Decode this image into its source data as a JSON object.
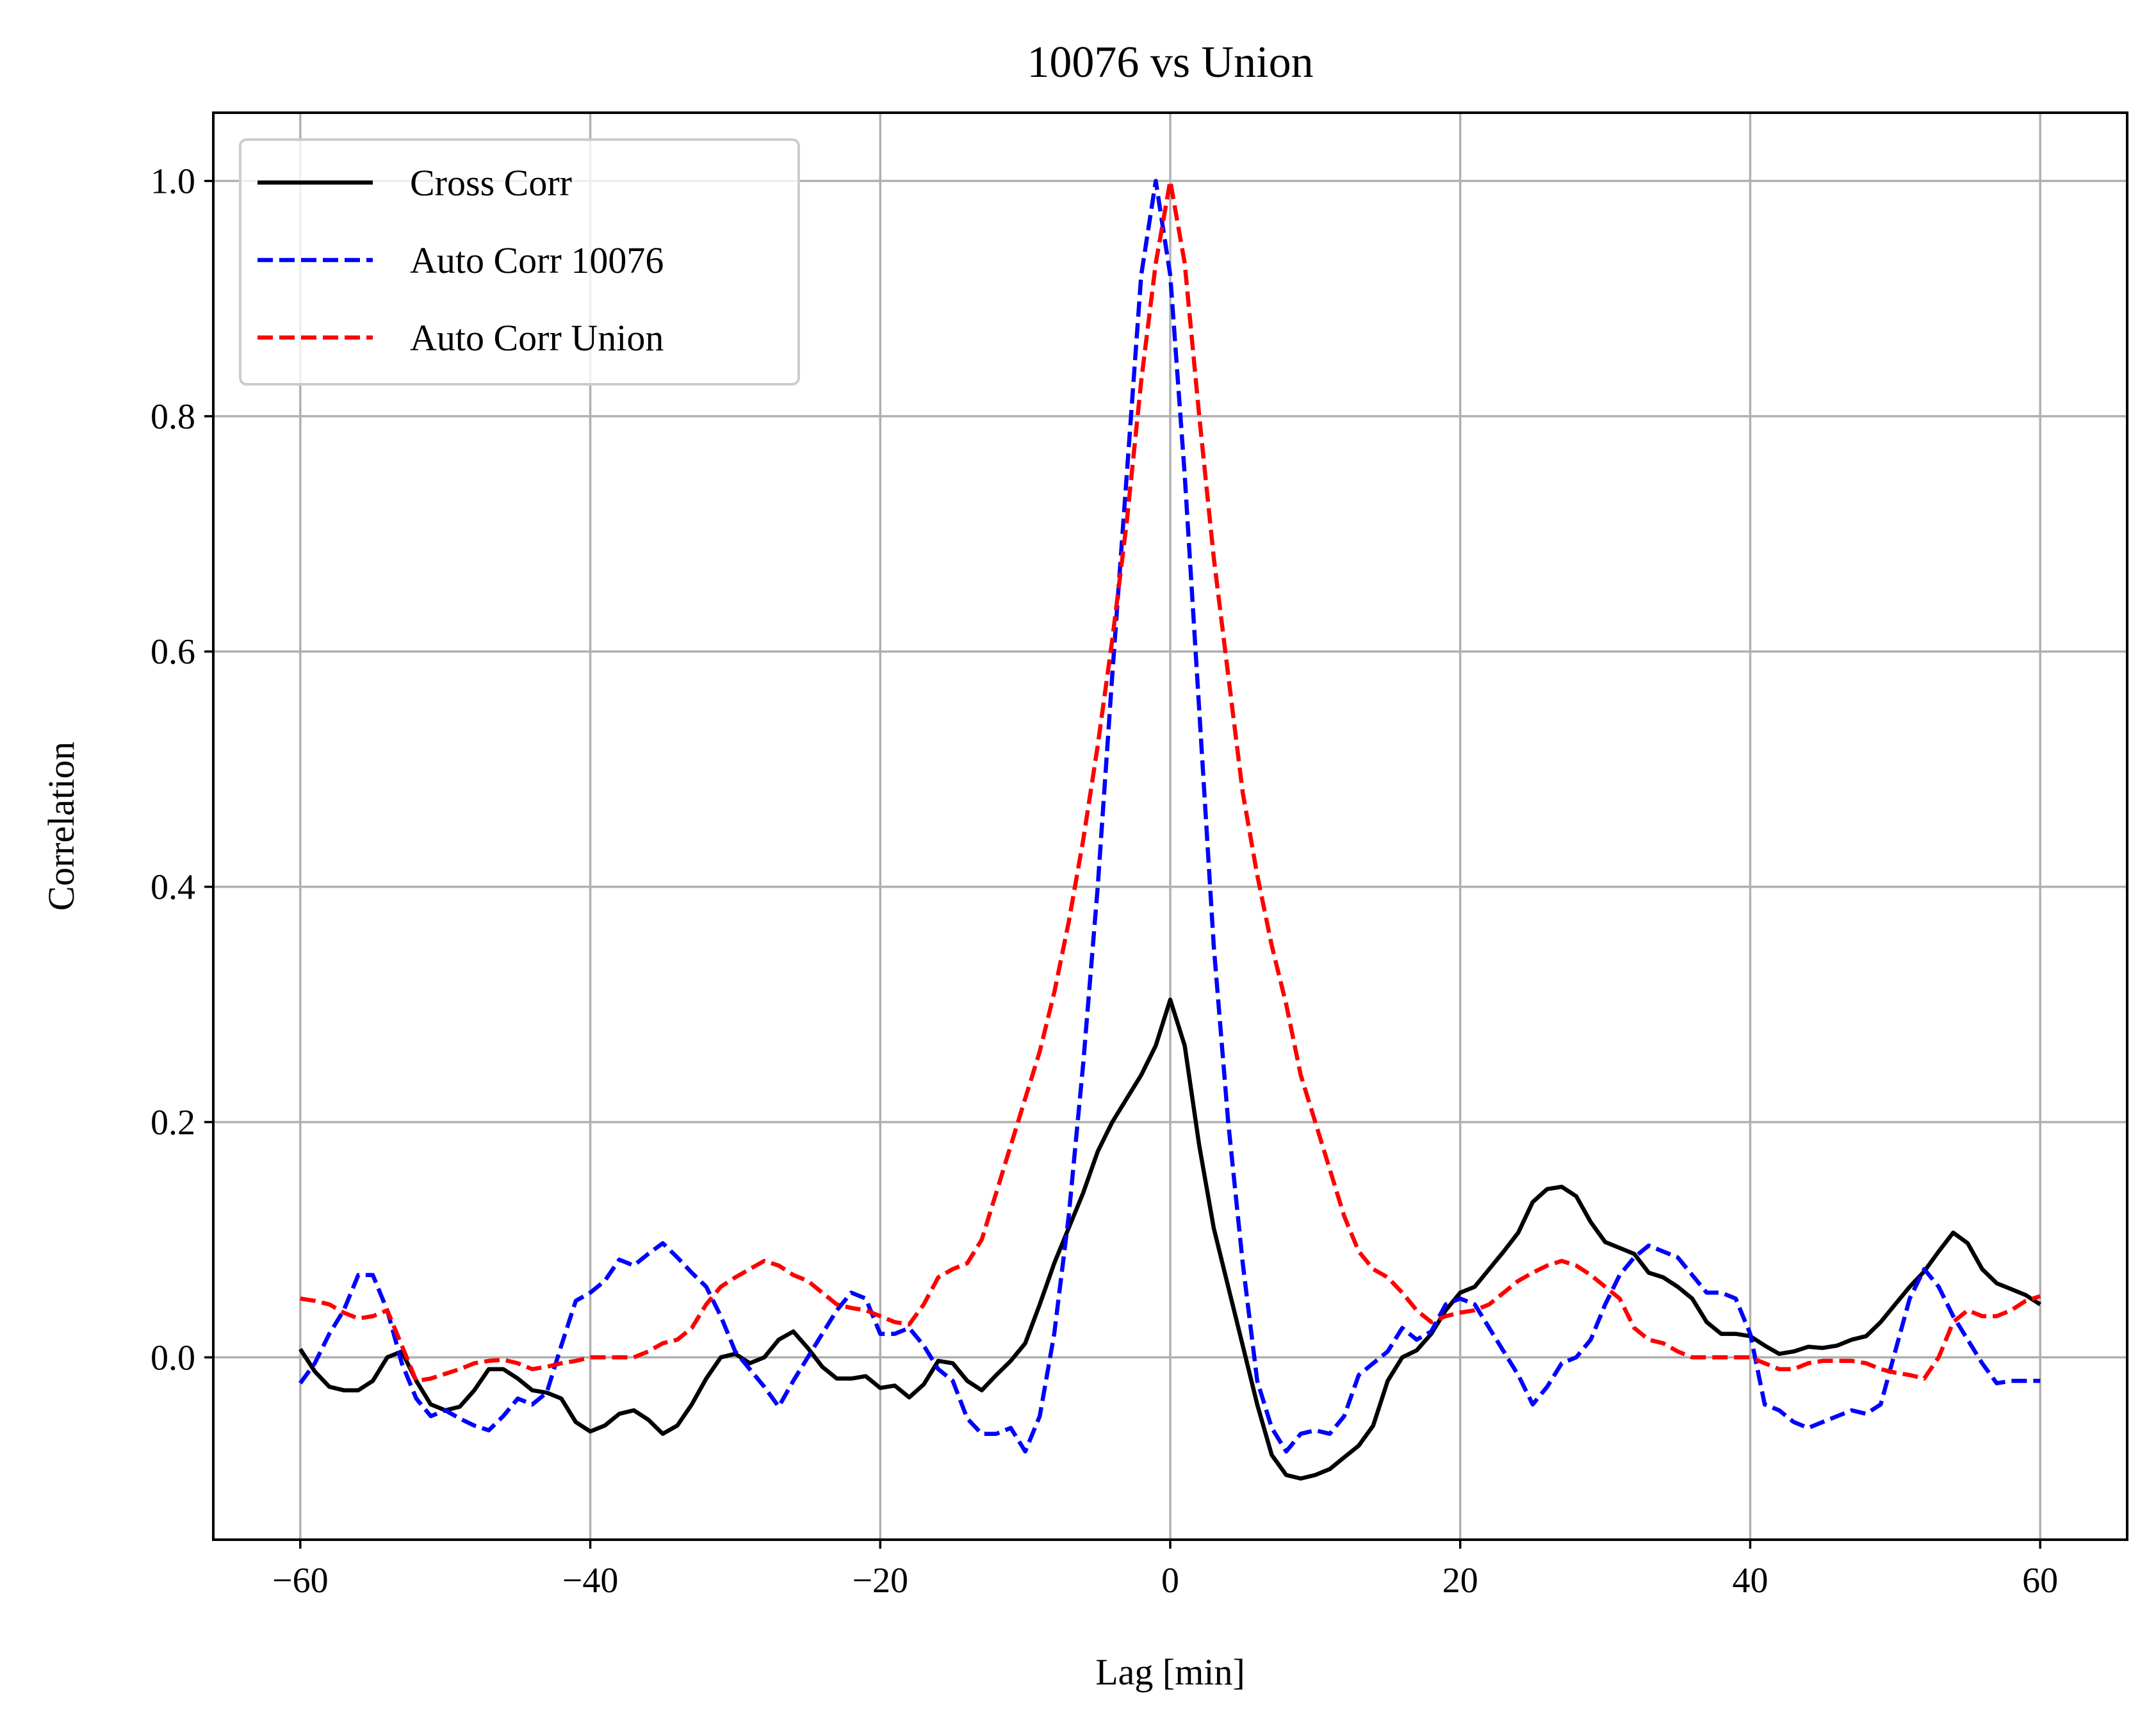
{
  "chart_data": {
    "type": "line",
    "title": "10076 vs Union",
    "xlabel": "Lag [min]",
    "ylabel": "Correlation",
    "xlim": [
      -66,
      66
    ],
    "ylim": [
      -0.155,
      1.058
    ],
    "xticks": [
      -60,
      -40,
      -20,
      0,
      20,
      40,
      60
    ],
    "xtick_labels": [
      "−60",
      "−40",
      "−20",
      "0",
      "20",
      "40",
      "60"
    ],
    "yticks": [
      0.0,
      0.2,
      0.4,
      0.6,
      0.8,
      1.0
    ],
    "ytick_labels": [
      "0.0",
      "0.2",
      "0.4",
      "0.6",
      "0.8",
      "1.0"
    ],
    "grid": true,
    "legend_position": "upper-left",
    "series": [
      {
        "name": "Cross Corr",
        "color": "#000000",
        "style": "solid",
        "x": [
          -60,
          -59,
          -58,
          -57,
          -56,
          -55,
          -54,
          -53,
          -52,
          -51,
          -50,
          -49,
          -48,
          -47,
          -46,
          -45,
          -44,
          -43,
          -42,
          -41,
          -40,
          -39,
          -38,
          -37,
          -36,
          -35,
          -34,
          -33,
          -32,
          -31,
          -30,
          -29,
          -28,
          -27,
          -26,
          -25,
          -24,
          -23,
          -22,
          -21,
          -20,
          -19,
          -18,
          -17,
          -16,
          -15,
          -14,
          -13,
          -12,
          -11,
          -10,
          -9,
          -8,
          -7,
          -6,
          -5,
          -4,
          -3,
          -2,
          -1,
          0,
          1,
          2,
          3,
          4,
          5,
          6,
          7,
          8,
          9,
          10,
          11,
          12,
          13,
          14,
          15,
          16,
          17,
          18,
          19,
          20,
          21,
          22,
          23,
          24,
          25,
          26,
          27,
          28,
          29,
          30,
          31,
          32,
          33,
          34,
          35,
          36,
          37,
          38,
          39,
          40,
          41,
          42,
          43,
          44,
          45,
          46,
          47,
          48,
          49,
          50,
          51,
          52,
          53,
          54,
          55,
          56,
          57,
          58,
          59,
          60
        ],
        "y": [
          0.007,
          -0.012,
          -0.025,
          -0.028,
          -0.028,
          -0.02,
          0.0,
          0.005,
          -0.02,
          -0.04,
          -0.045,
          -0.042,
          -0.028,
          -0.01,
          -0.01,
          -0.018,
          -0.028,
          -0.03,
          -0.035,
          -0.055,
          -0.063,
          -0.058,
          -0.048,
          -0.045,
          -0.053,
          -0.065,
          -0.058,
          -0.04,
          -0.018,
          0.0,
          0.003,
          -0.005,
          0.0,
          0.015,
          0.022,
          0.008,
          -0.008,
          -0.018,
          -0.018,
          -0.016,
          -0.026,
          -0.024,
          -0.034,
          -0.023,
          -0.003,
          -0.005,
          -0.02,
          -0.028,
          -0.015,
          -0.003,
          0.012,
          0.045,
          0.08,
          0.11,
          0.14,
          0.175,
          0.2,
          0.22,
          0.24,
          0.265,
          0.304,
          0.265,
          0.18,
          0.11,
          0.06,
          0.01,
          -0.04,
          -0.083,
          -0.1,
          -0.103,
          -0.1,
          -0.095,
          -0.085,
          -0.075,
          -0.058,
          -0.02,
          0.0,
          0.006,
          0.02,
          0.04,
          0.055,
          0.06,
          0.075,
          0.09,
          0.106,
          0.132,
          0.143,
          0.145,
          0.137,
          0.115,
          0.098,
          0.093,
          0.088,
          0.072,
          0.068,
          0.06,
          0.05,
          0.03,
          0.02,
          0.02,
          0.018,
          0.01,
          0.003,
          0.005,
          0.009,
          0.008,
          0.01,
          0.015,
          0.018,
          0.03,
          0.045,
          0.06,
          0.073,
          0.09,
          0.106,
          0.097,
          0.075,
          0.063,
          0.058,
          0.053,
          0.045
        ]
      },
      {
        "name": "Auto Corr 10076",
        "color": "#0000ff",
        "style": "dashed",
        "x": [
          -60,
          -59,
          -58,
          -57,
          -56,
          -55,
          -54,
          -53,
          -52,
          -51,
          -50,
          -49,
          -48,
          -47,
          -46,
          -45,
          -44,
          -43,
          -42,
          -41,
          -40,
          -39,
          -38,
          -37,
          -36,
          -35,
          -34,
          -33,
          -32,
          -31,
          -30,
          -29,
          -28,
          -27,
          -26,
          -25,
          -24,
          -23,
          -22,
          -21,
          -20,
          -19,
          -18,
          -17,
          -16,
          -15,
          -14,
          -13,
          -12,
          -11,
          -10,
          -9,
          -8,
          -7,
          -6,
          -5,
          -4,
          -3,
          -2,
          -1,
          0,
          1,
          2,
          3,
          4,
          5,
          6,
          7,
          8,
          9,
          10,
          11,
          12,
          13,
          14,
          15,
          16,
          17,
          18,
          19,
          20,
          21,
          22,
          23,
          24,
          25,
          26,
          27,
          28,
          29,
          30,
          31,
          32,
          33,
          34,
          35,
          36,
          37,
          38,
          39,
          40,
          41,
          42,
          43,
          44,
          45,
          46,
          47,
          48,
          49,
          50,
          51,
          52,
          53,
          54,
          55,
          56,
          57,
          58,
          59,
          60
        ],
        "y": [
          -0.022,
          -0.005,
          0.02,
          0.04,
          0.07,
          0.07,
          0.04,
          -0.005,
          -0.035,
          -0.05,
          -0.045,
          -0.052,
          -0.058,
          -0.062,
          -0.05,
          -0.035,
          -0.04,
          -0.03,
          0.01,
          0.048,
          0.055,
          0.065,
          0.083,
          0.078,
          0.088,
          0.097,
          0.085,
          0.072,
          0.06,
          0.035,
          0.005,
          -0.01,
          -0.025,
          -0.042,
          -0.02,
          0.0,
          0.02,
          0.04,
          0.055,
          0.05,
          0.02,
          0.02,
          0.025,
          0.01,
          -0.01,
          -0.02,
          -0.052,
          -0.065,
          -0.065,
          -0.06,
          -0.08,
          -0.05,
          0.02,
          0.12,
          0.25,
          0.4,
          0.58,
          0.75,
          0.92,
          1.0,
          0.92,
          0.75,
          0.55,
          0.35,
          0.2,
          0.08,
          -0.02,
          -0.06,
          -0.08,
          -0.065,
          -0.062,
          -0.065,
          -0.05,
          -0.015,
          -0.005,
          0.005,
          0.025,
          0.015,
          0.022,
          0.045,
          0.05,
          0.045,
          0.025,
          0.005,
          -0.015,
          -0.04,
          -0.025,
          -0.005,
          0.0,
          0.015,
          0.045,
          0.07,
          0.085,
          0.095,
          0.09,
          0.085,
          0.07,
          0.055,
          0.055,
          0.05,
          0.02,
          -0.04,
          -0.045,
          -0.055,
          -0.06,
          -0.055,
          -0.05,
          -0.045,
          -0.048,
          -0.04,
          0.005,
          0.05,
          0.075,
          0.06,
          0.035,
          0.015,
          -0.005,
          -0.022,
          -0.02,
          -0.02,
          -0.02
        ]
      },
      {
        "name": "Auto Corr Union",
        "color": "#ff0000",
        "style": "dashed",
        "x": [
          -60,
          -59,
          -58,
          -57,
          -56,
          -55,
          -54,
          -53,
          -52,
          -51,
          -50,
          -49,
          -48,
          -47,
          -46,
          -45,
          -44,
          -43,
          -42,
          -41,
          -40,
          -39,
          -38,
          -37,
          -36,
          -35,
          -34,
          -33,
          -32,
          -31,
          -30,
          -29,
          -28,
          -27,
          -26,
          -25,
          -24,
          -23,
          -22,
          -21,
          -20,
          -19,
          -18,
          -17,
          -16,
          -15,
          -14,
          -13,
          -12,
          -11,
          -10,
          -9,
          -8,
          -7,
          -6,
          -5,
          -4,
          -3,
          -2,
          -1,
          0,
          1,
          2,
          3,
          4,
          5,
          6,
          7,
          8,
          9,
          10,
          11,
          12,
          13,
          14,
          15,
          16,
          17,
          18,
          19,
          20,
          21,
          22,
          23,
          24,
          25,
          26,
          27,
          28,
          29,
          30,
          31,
          32,
          33,
          34,
          35,
          36,
          37,
          38,
          39,
          40,
          41,
          42,
          43,
          44,
          45,
          46,
          47,
          48,
          49,
          50,
          51,
          52,
          53,
          54,
          55,
          56,
          57,
          58,
          59,
          60
        ],
        "y": [
          0.05,
          0.048,
          0.045,
          0.038,
          0.033,
          0.035,
          0.04,
          0.01,
          -0.02,
          -0.018,
          -0.014,
          -0.01,
          -0.005,
          -0.003,
          -0.002,
          -0.005,
          -0.01,
          -0.008,
          -0.005,
          -0.003,
          0.0,
          0.0,
          0.0,
          0.0,
          0.005,
          0.012,
          0.015,
          0.025,
          0.045,
          0.06,
          0.068,
          0.075,
          0.082,
          0.078,
          0.07,
          0.065,
          0.055,
          0.045,
          0.042,
          0.04,
          0.035,
          0.03,
          0.028,
          0.045,
          0.068,
          0.075,
          0.08,
          0.1,
          0.14,
          0.18,
          0.22,
          0.26,
          0.31,
          0.37,
          0.44,
          0.52,
          0.61,
          0.71,
          0.83,
          0.93,
          1.0,
          0.93,
          0.8,
          0.68,
          0.58,
          0.48,
          0.41,
          0.35,
          0.3,
          0.24,
          0.2,
          0.16,
          0.12,
          0.09,
          0.075,
          0.068,
          0.055,
          0.04,
          0.03,
          0.035,
          0.038,
          0.04,
          0.045,
          0.055,
          0.065,
          0.072,
          0.078,
          0.082,
          0.078,
          0.07,
          0.06,
          0.05,
          0.025,
          0.015,
          0.012,
          0.005,
          0.0,
          0.0,
          0.0,
          0.0,
          0.0,
          -0.005,
          -0.01,
          -0.01,
          -0.005,
          -0.003,
          -0.003,
          -0.003,
          -0.005,
          -0.01,
          -0.013,
          -0.015,
          -0.018,
          0.0,
          0.03,
          0.04,
          0.035,
          0.035,
          0.04,
          0.048,
          0.052
        ]
      }
    ]
  }
}
